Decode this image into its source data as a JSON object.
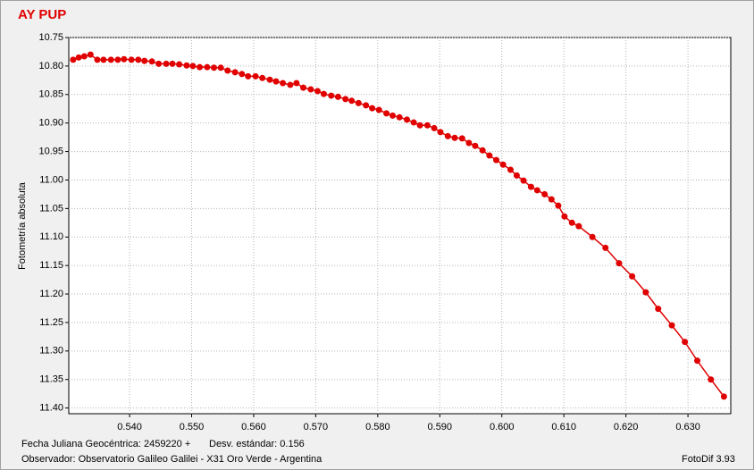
{
  "chart_data": {
    "type": "line",
    "title": "AY PUP",
    "ylabel": "Fotometría absoluta",
    "xlabel": "Fecha Juliana Geocéntrica: 2459220 +",
    "annotations": [
      "Desv. estándar: 0.156",
      "Observador: Observatorio Galileo Galilei - X31 Oro Verde - Argentina",
      "FotoDif 3.93"
    ],
    "color": "#e00000",
    "grid": true,
    "y_inverted": true,
    "xlim": [
      0.5302,
      0.6369
    ],
    "ylim": [
      10.75,
      11.41
    ],
    "xticks": [
      {
        "value": 0.54,
        "label": "0.540"
      },
      {
        "value": 0.55,
        "label": "0.550"
      },
      {
        "value": 0.56,
        "label": "0.560"
      },
      {
        "value": 0.57,
        "label": "0.570"
      },
      {
        "value": 0.58,
        "label": "0.580"
      },
      {
        "value": 0.59,
        "label": "0.590"
      },
      {
        "value": 0.6,
        "label": "0.600"
      },
      {
        "value": 0.61,
        "label": "0.610"
      },
      {
        "value": 0.62,
        "label": "0.620"
      },
      {
        "value": 0.63,
        "label": "0.630"
      }
    ],
    "yticks": [
      10.75,
      {
        "value": 10.8,
        "label": "10.80"
      },
      10.85,
      {
        "value": 10.9,
        "label": "10.90"
      },
      10.95,
      {
        "value": 11,
        "label": "11.00"
      },
      11.05,
      {
        "value": 11.1,
        "label": "11.10"
      },
      11.15,
      {
        "value": 11.2,
        "label": "11.20"
      },
      11.25,
      {
        "value": 11.3,
        "label": "11.30"
      },
      11.35,
      {
        "value": 11.4,
        "label": "11.40"
      }
    ],
    "x": [
      0.5309,
      0.5318,
      0.5327,
      0.5337,
      0.5348,
      0.5358,
      0.537,
      0.5381,
      0.5391,
      0.5403,
      0.5414,
      0.5424,
      0.5436,
      0.5447,
      0.5459,
      0.5469,
      0.548,
      0.5492,
      0.5502,
      0.5513,
      0.5525,
      0.5536,
      0.5547,
      0.5558,
      0.557,
      0.5581,
      0.5591,
      0.5603,
      0.5614,
      0.5626,
      0.5636,
      0.5647,
      0.5659,
      0.5669,
      0.568,
      0.5692,
      0.5703,
      0.5713,
      0.5725,
      0.5736,
      0.5748,
      0.5758,
      0.5769,
      0.5781,
      0.5791,
      0.5802,
      0.5814,
      0.5824,
      0.5835,
      0.5847,
      0.5858,
      0.5868,
      0.588,
      0.5891,
      0.5901,
      0.5913,
      0.5924,
      0.5936,
      0.5947,
      0.5957,
      0.5969,
      0.598,
      0.5991,
      0.6002,
      0.6014,
      0.6024,
      0.6035,
      0.6047,
      0.6057,
      0.6069,
      0.608,
      0.6091,
      0.6101,
      0.6113,
      0.6124,
      0.6146,
      0.6167,
      0.6189,
      0.621,
      0.6232,
      0.6252,
      0.6274,
      0.6295,
      0.6315,
      0.6337,
      0.6358
    ],
    "values": [
      10.789,
      10.785,
      10.783,
      10.78,
      10.789,
      10.789,
      10.789,
      10.789,
      10.788,
      10.789,
      10.789,
      10.791,
      10.792,
      10.796,
      10.796,
      10.796,
      10.797,
      10.799,
      10.8,
      10.802,
      10.802,
      10.803,
      10.803,
      10.808,
      10.811,
      10.814,
      10.818,
      10.818,
      10.821,
      10.824,
      10.827,
      10.83,
      10.833,
      10.83,
      10.838,
      10.841,
      10.844,
      10.849,
      10.852,
      10.854,
      10.858,
      10.861,
      10.865,
      10.869,
      10.874,
      10.877,
      10.883,
      10.887,
      10.89,
      10.894,
      10.899,
      10.904,
      10.904,
      10.909,
      10.916,
      10.923,
      10.926,
      10.927,
      10.935,
      10.94,
      10.948,
      10.957,
      10.965,
      10.973,
      10.982,
      10.992,
      11.001,
      11.012,
      11.018,
      11.025,
      11.034,
      11.045,
      11.064,
      11.075,
      11.081,
      11.1,
      11.119,
      11.146,
      11.169,
      11.197,
      11.226,
      11.255,
      11.284,
      11.317,
      11.35,
      11.38
    ]
  }
}
